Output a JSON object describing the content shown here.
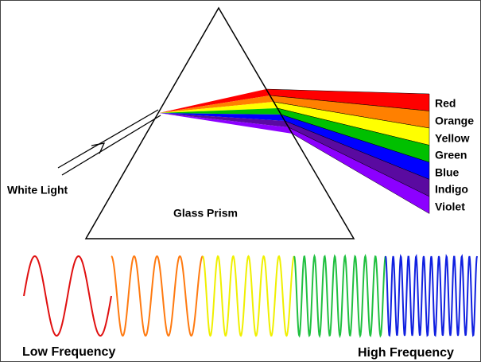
{
  "labels": {
    "white_light": "White Light",
    "glass_prism": "Glass Prism"
  },
  "spectrum": [
    "Red",
    "Orange",
    "Yellow",
    "Green",
    "Blue",
    "Indigo",
    "Violet"
  ],
  "frequency": {
    "low": "Low Frequency",
    "high": "High Frequency"
  }
}
